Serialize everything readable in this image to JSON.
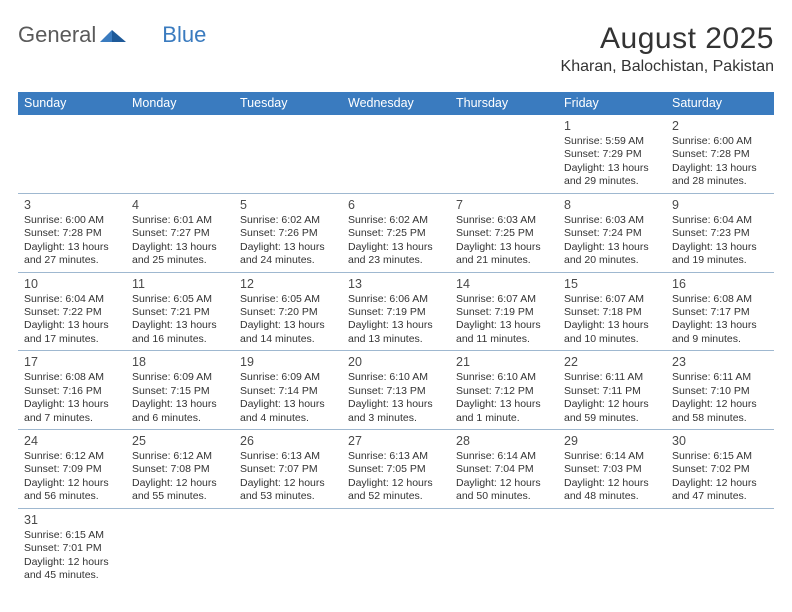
{
  "logo": {
    "general": "General",
    "blue": "Blue"
  },
  "title": "August 2025",
  "location": "Kharan, Balochistan, Pakistan",
  "colors": {
    "header_bg": "#3a7bbf",
    "header_text": "#ffffff",
    "row_border": "#9fb8d0",
    "text": "#333333",
    "logo_gray": "#5a5a5a",
    "logo_blue": "#3a7bbf"
  },
  "day_names": [
    "Sunday",
    "Monday",
    "Tuesday",
    "Wednesday",
    "Thursday",
    "Friday",
    "Saturday"
  ],
  "weeks": [
    [
      null,
      null,
      null,
      null,
      null,
      {
        "n": "1",
        "sunrise": "Sunrise: 5:59 AM",
        "sunset": "Sunset: 7:29 PM",
        "daylight": "Daylight: 13 hours and 29 minutes."
      },
      {
        "n": "2",
        "sunrise": "Sunrise: 6:00 AM",
        "sunset": "Sunset: 7:28 PM",
        "daylight": "Daylight: 13 hours and 28 minutes."
      }
    ],
    [
      {
        "n": "3",
        "sunrise": "Sunrise: 6:00 AM",
        "sunset": "Sunset: 7:28 PM",
        "daylight": "Daylight: 13 hours and 27 minutes."
      },
      {
        "n": "4",
        "sunrise": "Sunrise: 6:01 AM",
        "sunset": "Sunset: 7:27 PM",
        "daylight": "Daylight: 13 hours and 25 minutes."
      },
      {
        "n": "5",
        "sunrise": "Sunrise: 6:02 AM",
        "sunset": "Sunset: 7:26 PM",
        "daylight": "Daylight: 13 hours and 24 minutes."
      },
      {
        "n": "6",
        "sunrise": "Sunrise: 6:02 AM",
        "sunset": "Sunset: 7:25 PM",
        "daylight": "Daylight: 13 hours and 23 minutes."
      },
      {
        "n": "7",
        "sunrise": "Sunrise: 6:03 AM",
        "sunset": "Sunset: 7:25 PM",
        "daylight": "Daylight: 13 hours and 21 minutes."
      },
      {
        "n": "8",
        "sunrise": "Sunrise: 6:03 AM",
        "sunset": "Sunset: 7:24 PM",
        "daylight": "Daylight: 13 hours and 20 minutes."
      },
      {
        "n": "9",
        "sunrise": "Sunrise: 6:04 AM",
        "sunset": "Sunset: 7:23 PM",
        "daylight": "Daylight: 13 hours and 19 minutes."
      }
    ],
    [
      {
        "n": "10",
        "sunrise": "Sunrise: 6:04 AM",
        "sunset": "Sunset: 7:22 PM",
        "daylight": "Daylight: 13 hours and 17 minutes."
      },
      {
        "n": "11",
        "sunrise": "Sunrise: 6:05 AM",
        "sunset": "Sunset: 7:21 PM",
        "daylight": "Daylight: 13 hours and 16 minutes."
      },
      {
        "n": "12",
        "sunrise": "Sunrise: 6:05 AM",
        "sunset": "Sunset: 7:20 PM",
        "daylight": "Daylight: 13 hours and 14 minutes."
      },
      {
        "n": "13",
        "sunrise": "Sunrise: 6:06 AM",
        "sunset": "Sunset: 7:19 PM",
        "daylight": "Daylight: 13 hours and 13 minutes."
      },
      {
        "n": "14",
        "sunrise": "Sunrise: 6:07 AM",
        "sunset": "Sunset: 7:19 PM",
        "daylight": "Daylight: 13 hours and 11 minutes."
      },
      {
        "n": "15",
        "sunrise": "Sunrise: 6:07 AM",
        "sunset": "Sunset: 7:18 PM",
        "daylight": "Daylight: 13 hours and 10 minutes."
      },
      {
        "n": "16",
        "sunrise": "Sunrise: 6:08 AM",
        "sunset": "Sunset: 7:17 PM",
        "daylight": "Daylight: 13 hours and 9 minutes."
      }
    ],
    [
      {
        "n": "17",
        "sunrise": "Sunrise: 6:08 AM",
        "sunset": "Sunset: 7:16 PM",
        "daylight": "Daylight: 13 hours and 7 minutes."
      },
      {
        "n": "18",
        "sunrise": "Sunrise: 6:09 AM",
        "sunset": "Sunset: 7:15 PM",
        "daylight": "Daylight: 13 hours and 6 minutes."
      },
      {
        "n": "19",
        "sunrise": "Sunrise: 6:09 AM",
        "sunset": "Sunset: 7:14 PM",
        "daylight": "Daylight: 13 hours and 4 minutes."
      },
      {
        "n": "20",
        "sunrise": "Sunrise: 6:10 AM",
        "sunset": "Sunset: 7:13 PM",
        "daylight": "Daylight: 13 hours and 3 minutes."
      },
      {
        "n": "21",
        "sunrise": "Sunrise: 6:10 AM",
        "sunset": "Sunset: 7:12 PM",
        "daylight": "Daylight: 13 hours and 1 minute."
      },
      {
        "n": "22",
        "sunrise": "Sunrise: 6:11 AM",
        "sunset": "Sunset: 7:11 PM",
        "daylight": "Daylight: 12 hours and 59 minutes."
      },
      {
        "n": "23",
        "sunrise": "Sunrise: 6:11 AM",
        "sunset": "Sunset: 7:10 PM",
        "daylight": "Daylight: 12 hours and 58 minutes."
      }
    ],
    [
      {
        "n": "24",
        "sunrise": "Sunrise: 6:12 AM",
        "sunset": "Sunset: 7:09 PM",
        "daylight": "Daylight: 12 hours and 56 minutes."
      },
      {
        "n": "25",
        "sunrise": "Sunrise: 6:12 AM",
        "sunset": "Sunset: 7:08 PM",
        "daylight": "Daylight: 12 hours and 55 minutes."
      },
      {
        "n": "26",
        "sunrise": "Sunrise: 6:13 AM",
        "sunset": "Sunset: 7:07 PM",
        "daylight": "Daylight: 12 hours and 53 minutes."
      },
      {
        "n": "27",
        "sunrise": "Sunrise: 6:13 AM",
        "sunset": "Sunset: 7:05 PM",
        "daylight": "Daylight: 12 hours and 52 minutes."
      },
      {
        "n": "28",
        "sunrise": "Sunrise: 6:14 AM",
        "sunset": "Sunset: 7:04 PM",
        "daylight": "Daylight: 12 hours and 50 minutes."
      },
      {
        "n": "29",
        "sunrise": "Sunrise: 6:14 AM",
        "sunset": "Sunset: 7:03 PM",
        "daylight": "Daylight: 12 hours and 48 minutes."
      },
      {
        "n": "30",
        "sunrise": "Sunrise: 6:15 AM",
        "sunset": "Sunset: 7:02 PM",
        "daylight": "Daylight: 12 hours and 47 minutes."
      }
    ],
    [
      {
        "n": "31",
        "sunrise": "Sunrise: 6:15 AM",
        "sunset": "Sunset: 7:01 PM",
        "daylight": "Daylight: 12 hours and 45 minutes."
      },
      null,
      null,
      null,
      null,
      null,
      null
    ]
  ]
}
